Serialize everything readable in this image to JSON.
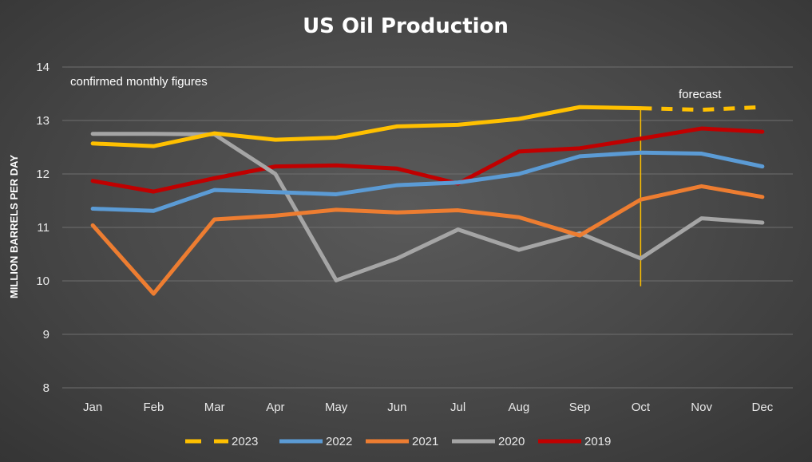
{
  "chart_data": {
    "type": "line",
    "title": "US Oil Production",
    "xlabel": "",
    "ylabel": "MILLION BARRELS PER DAY",
    "categories": [
      "Jan",
      "Feb",
      "Mar",
      "Apr",
      "May",
      "Jun",
      "Jul",
      "Aug",
      "Sep",
      "Oct",
      "Nov",
      "Dec"
    ],
    "ylim": [
      8,
      14
    ],
    "yticks": [
      8,
      9,
      10,
      11,
      12,
      13,
      14
    ],
    "grid": true,
    "legend_position": "bottom",
    "series": [
      {
        "name": "2023",
        "color": "#ffc000",
        "values": [
          12.57,
          12.52,
          12.76,
          12.64,
          12.68,
          12.89,
          12.92,
          13.03,
          13.25,
          13.23,
          13.2,
          13.25
        ],
        "forecast_from_index": 9
      },
      {
        "name": "2022",
        "color": "#5b9bd5",
        "values": [
          11.35,
          11.31,
          11.7,
          11.66,
          11.62,
          11.79,
          11.84,
          12.0,
          12.33,
          12.4,
          12.38,
          12.14
        ]
      },
      {
        "name": "2021",
        "color": "#ed7d31",
        "values": [
          11.04,
          9.76,
          11.15,
          11.22,
          11.33,
          11.28,
          11.32,
          11.19,
          10.85,
          11.52,
          11.77,
          11.57
        ]
      },
      {
        "name": "2020",
        "color": "#a5a5a5",
        "values": [
          12.75,
          12.75,
          12.74,
          12.0,
          10.01,
          10.42,
          10.96,
          10.58,
          10.89,
          10.42,
          11.17,
          11.09
        ]
      },
      {
        "name": "2019",
        "color": "#c00000",
        "values": [
          11.87,
          11.67,
          11.92,
          12.14,
          12.16,
          12.1,
          11.82,
          12.42,
          12.48,
          12.66,
          12.85,
          12.79
        ]
      }
    ],
    "annotations": {
      "confirmed": "confirmed monthly figures",
      "forecast": "forecast",
      "divider_x": "Oct",
      "divider_y_range": [
        9.9,
        13.2
      ],
      "divider_color": "#ffc000"
    }
  }
}
